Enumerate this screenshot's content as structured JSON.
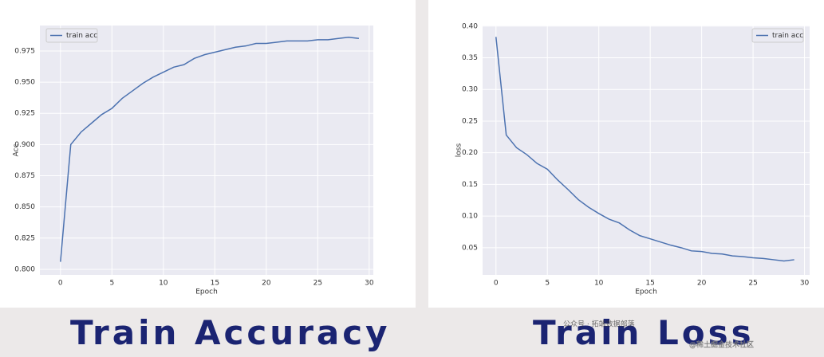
{
  "chart_data": [
    {
      "type": "line",
      "caption": "Train Accuracy",
      "xlabel": "Epoch",
      "ylabel": "Acc",
      "x": [
        0,
        1,
        2,
        3,
        4,
        5,
        6,
        7,
        8,
        9,
        10,
        11,
        12,
        13,
        14,
        15,
        16,
        17,
        18,
        19,
        20,
        21,
        22,
        23,
        24,
        25,
        26,
        27,
        28,
        29
      ],
      "series": [
        {
          "name": "train acc",
          "color": "#4c72b0",
          "values": [
            0.806,
            0.9,
            0.91,
            0.917,
            0.924,
            0.929,
            0.937,
            0.943,
            0.949,
            0.954,
            0.958,
            0.962,
            0.964,
            0.969,
            0.972,
            0.974,
            0.976,
            0.978,
            0.979,
            0.981,
            0.981,
            0.982,
            0.983,
            0.983,
            0.983,
            0.984,
            0.984,
            0.985,
            0.986,
            0.985
          ]
        }
      ],
      "xlim": [
        -2,
        30.4
      ],
      "xticks": [
        0,
        5,
        10,
        15,
        20,
        25,
        30
      ],
      "ylim": [
        0.7955,
        0.9954
      ],
      "yticks": [
        {
          "value": 0.8,
          "label": "0.800"
        },
        0.825,
        {
          "value": 0.85,
          "label": "0.850"
        },
        0.875,
        {
          "value": 0.9,
          "label": "0.900"
        },
        0.925,
        {
          "value": 0.95,
          "label": "0.950"
        },
        0.975
      ],
      "grid": true,
      "legend": "upper-left"
    },
    {
      "type": "line",
      "caption": "Train Loss",
      "xlabel": "Epoch",
      "ylabel": "loss",
      "x": [
        0,
        1,
        2,
        3,
        4,
        5,
        6,
        7,
        8,
        9,
        10,
        11,
        12,
        13,
        14,
        15,
        16,
        17,
        18,
        19,
        20,
        21,
        22,
        23,
        24,
        25,
        26,
        27,
        28,
        29
      ],
      "series": [
        {
          "name": "train acc",
          "color": "#4c72b0",
          "values": [
            0.383,
            0.228,
            0.208,
            0.197,
            0.183,
            0.174,
            0.157,
            0.142,
            0.126,
            0.114,
            0.104,
            0.095,
            0.089,
            0.078,
            0.069,
            0.064,
            0.059,
            0.054,
            0.05,
            0.045,
            0.044,
            0.041,
            0.04,
            0.037,
            0.036,
            0.034,
            0.033,
            0.031,
            0.029,
            0.031
          ]
        }
      ],
      "xlim": [
        -1.3,
        30.5
      ],
      "xticks": [
        0,
        5,
        10,
        15,
        20,
        25,
        30
      ],
      "ylim": [
        0.007,
        0.401
      ],
      "yticks": [
        0.05,
        {
          "value": 0.1,
          "label": "0.10"
        },
        0.15,
        {
          "value": 0.2,
          "label": "0.20"
        },
        0.25,
        {
          "value": 0.3,
          "label": "0.30"
        },
        0.35,
        {
          "value": 0.4,
          "label": "0.40"
        }
      ],
      "grid": true,
      "legend": "upper-right"
    }
  ],
  "watermark": [
    "公众号 · 拓端数据部落",
    "@稀土掘金技术社区"
  ]
}
